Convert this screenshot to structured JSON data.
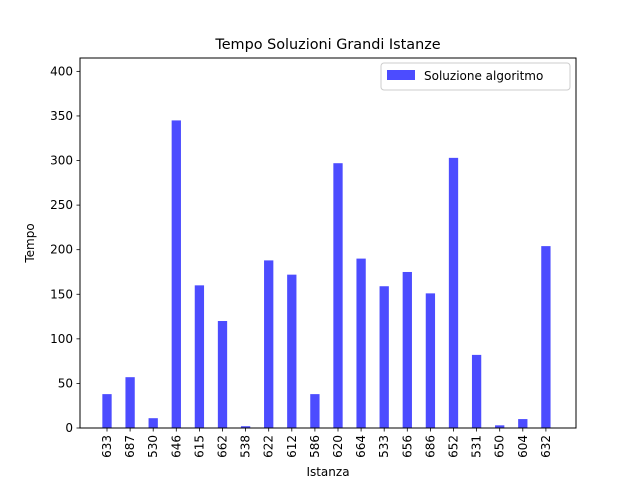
{
  "chart_data": {
    "type": "bar",
    "title": "Tempo Soluzioni Grandi Istanze",
    "xlabel": "Istanza",
    "ylabel": "Tempo",
    "ylim": [
      0,
      415
    ],
    "yticks": [
      0,
      50,
      100,
      150,
      200,
      250,
      300,
      350,
      400
    ],
    "grid": false,
    "legend_position": "top-right",
    "categories": [
      "633",
      "687",
      "530",
      "646",
      "615",
      "662",
      "538",
      "622",
      "612",
      "586",
      "620",
      "664",
      "533",
      "656",
      "686",
      "652",
      "531",
      "650",
      "604",
      "632"
    ],
    "series": [
      {
        "name": "Soluzione algoritmo",
        "color": "#4c4cff",
        "values": [
          38,
          57,
          11,
          345,
          160,
          120,
          2,
          188,
          172,
          38,
          297,
          190,
          159,
          175,
          151,
          303,
          82,
          3,
          10,
          204
        ]
      }
    ]
  }
}
